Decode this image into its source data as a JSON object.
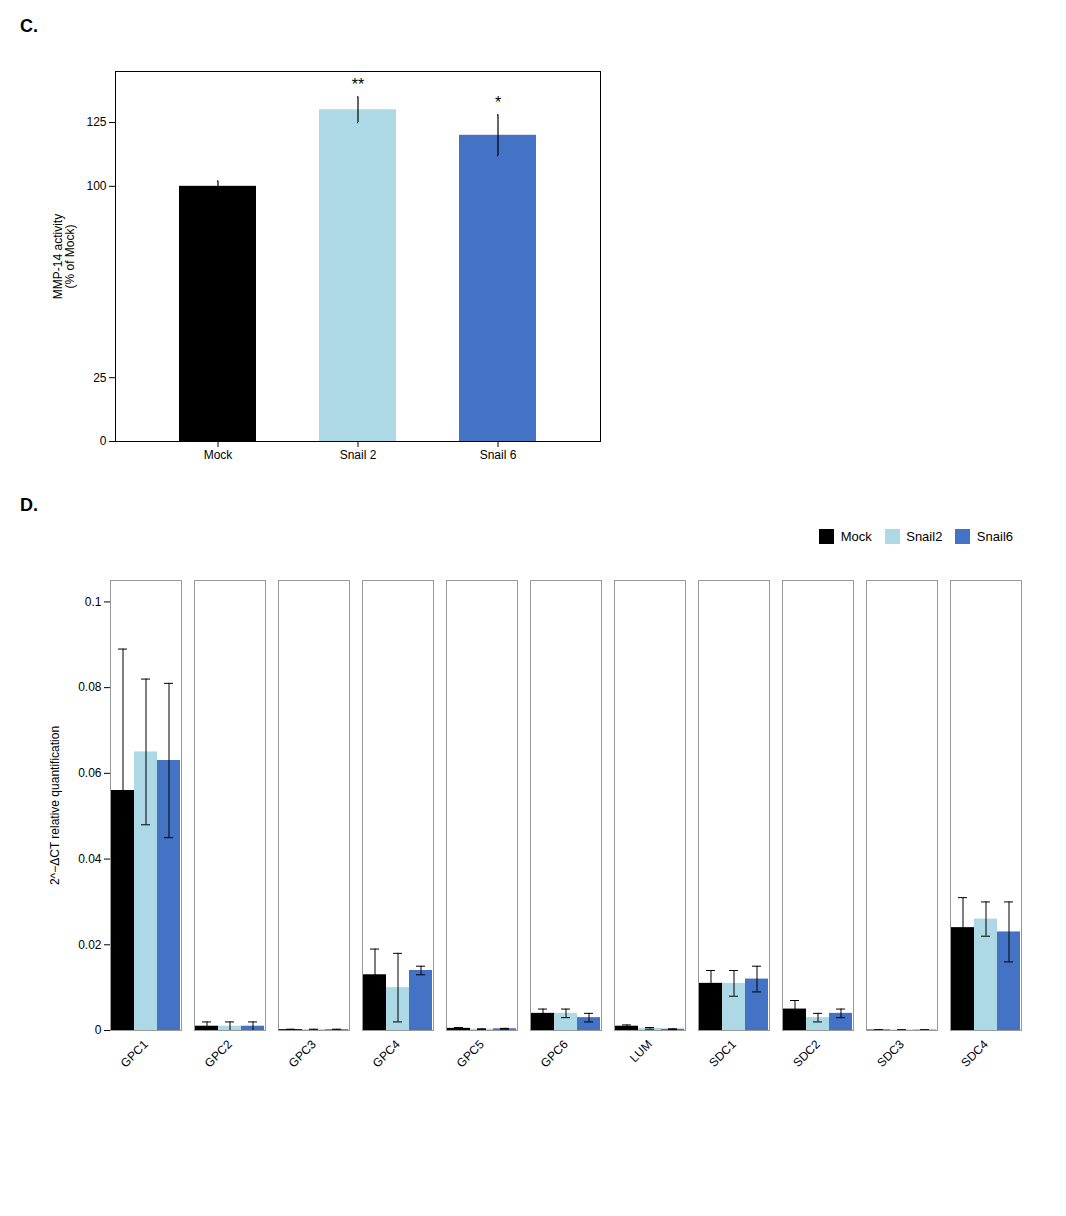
{
  "chart_data": [
    {
      "type": "bar",
      "title": "C.",
      "categories": [
        "Mock",
        "Snail 2",
        "Snail 6"
      ],
      "values": [
        100,
        130,
        120
      ],
      "errors": [
        2,
        5,
        8
      ],
      "colors": [
        "#000000",
        "#ADD8E6",
        "#4472C4"
      ],
      "ylabel": "MMP-14 activity\n(% of Mock)",
      "ylim": [
        0,
        145
      ],
      "yticks": [
        0,
        25,
        100,
        125
      ],
      "annotations": [
        {
          "category": "Snail 2",
          "text": "**"
        },
        {
          "category": "Snail 6",
          "text": "*"
        }
      ]
    },
    {
      "type": "bar",
      "title": "D.",
      "categories": [
        "GPC1",
        "GPC2",
        "GPC3",
        "GPC4",
        "GPC5",
        "GPC6",
        "LUM",
        "SDC1",
        "SDC2",
        "SDC3",
        "SDC4"
      ],
      "series": [
        {
          "name": "Mock",
          "color": "#000000",
          "values": [
            0.056,
            0.001,
            0.0002,
            0.013,
            0.0005,
            0.004,
            0.001,
            0.011,
            0.005,
            0.0001,
            0.024
          ],
          "errors": [
            0.033,
            0.001,
            0.0001,
            0.006,
            0.0002,
            0.001,
            0.0003,
            0.003,
            0.002,
            0.0001,
            0.007
          ]
        },
        {
          "name": "Snail2",
          "color": "#ADD8E6",
          "values": [
            0.065,
            0.001,
            0.0002,
            0.01,
            0.0003,
            0.004,
            0.0005,
            0.011,
            0.003,
            0.0001,
            0.026
          ],
          "errors": [
            0.017,
            0.001,
            0.0001,
            0.008,
            0.0001,
            0.001,
            0.0002,
            0.003,
            0.001,
            0.0001,
            0.004
          ]
        },
        {
          "name": "Snail6",
          "color": "#4472C4",
          "values": [
            0.063,
            0.001,
            0.0002,
            0.014,
            0.0004,
            0.003,
            0.0003,
            0.012,
            0.004,
            0.0001,
            0.023
          ],
          "errors": [
            0.018,
            0.001,
            0.0001,
            0.001,
            0.0001,
            0.001,
            0.0001,
            0.003,
            0.001,
            0.0001,
            0.007
          ]
        }
      ],
      "ylabel": "2^−ΔCT relative quantification",
      "ylim": [
        0,
        0.105
      ],
      "yticks": [
        0,
        0.02,
        0.04,
        0.06,
        0.08,
        0.1
      ],
      "legend": "upper right"
    }
  ]
}
